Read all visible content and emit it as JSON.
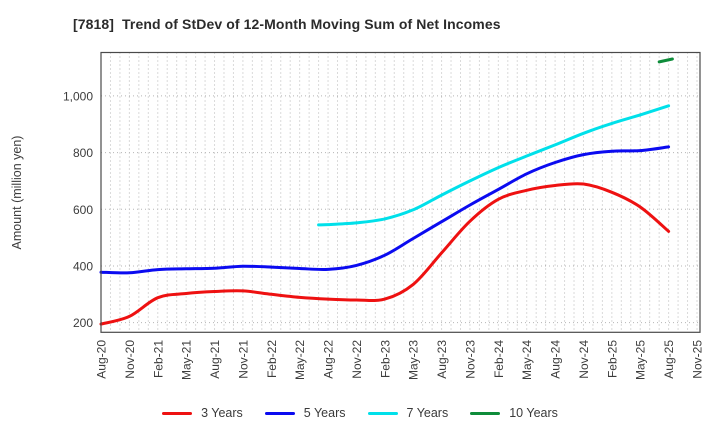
{
  "chart_data": {
    "type": "line",
    "title": "[7818]  Trend of StDev of 12-Month Moving Sum of Net Incomes",
    "ylabel": "Amount (million yen)",
    "xlabel": "",
    "x_tick_labels": [
      "Aug-20",
      "Nov-20",
      "Feb-21",
      "May-21",
      "Aug-21",
      "Nov-21",
      "Feb-22",
      "May-22",
      "Aug-22",
      "Nov-22",
      "Feb-23",
      "May-23",
      "Aug-23",
      "Nov-23",
      "Feb-24",
      "May-24",
      "Aug-24",
      "Nov-24",
      "Feb-25",
      "May-25",
      "Aug-25",
      "Nov-25"
    ],
    "x_months_per_tick": 3,
    "x_total_months": 63,
    "y_ticks": [
      200,
      400,
      600,
      800,
      1000
    ],
    "y_tick_labels": [
      "200",
      "400",
      "600",
      "800",
      "1,000"
    ],
    "ylim": [
      166,
      1153
    ],
    "grid": {
      "horizontal": "dotted at each y tick",
      "vertical": "dotted monthly"
    },
    "legend_position": "bottom-center",
    "axis_color": "#4a4a4a",
    "gridline_color": "#b5b5b5",
    "series": [
      {
        "name": "3 Years",
        "color": "#ee1111",
        "points": [
          [
            0,
            195
          ],
          [
            3,
            222
          ],
          [
            6,
            288
          ],
          [
            9,
            303
          ],
          [
            12,
            310
          ],
          [
            15,
            312
          ],
          [
            18,
            300
          ],
          [
            21,
            289
          ],
          [
            24,
            283
          ],
          [
            27,
            280
          ],
          [
            30,
            283
          ],
          [
            33,
            335
          ],
          [
            36,
            446
          ],
          [
            39,
            558
          ],
          [
            42,
            635
          ],
          [
            45,
            667
          ],
          [
            48,
            684
          ],
          [
            51,
            689
          ],
          [
            54,
            660
          ],
          [
            57,
            608
          ],
          [
            60,
            522
          ]
        ]
      },
      {
        "name": "5 Years",
        "color": "#0b0bf0",
        "points": [
          [
            0,
            378
          ],
          [
            3,
            376
          ],
          [
            6,
            387
          ],
          [
            9,
            390
          ],
          [
            12,
            392
          ],
          [
            15,
            399
          ],
          [
            18,
            396
          ],
          [
            21,
            391
          ],
          [
            24,
            388
          ],
          [
            27,
            402
          ],
          [
            30,
            438
          ],
          [
            33,
            497
          ],
          [
            36,
            556
          ],
          [
            39,
            615
          ],
          [
            42,
            670
          ],
          [
            45,
            725
          ],
          [
            48,
            765
          ],
          [
            51,
            793
          ],
          [
            54,
            805
          ],
          [
            57,
            807
          ],
          [
            60,
            820
          ]
        ]
      },
      {
        "name": "7 Years",
        "color": "#00e0ea",
        "points": [
          [
            23,
            545
          ],
          [
            24,
            546
          ],
          [
            27,
            552
          ],
          [
            30,
            566
          ],
          [
            33,
            598
          ],
          [
            36,
            650
          ],
          [
            39,
            700
          ],
          [
            42,
            747
          ],
          [
            45,
            788
          ],
          [
            48,
            827
          ],
          [
            51,
            868
          ],
          [
            54,
            903
          ],
          [
            57,
            933
          ],
          [
            60,
            965
          ]
        ]
      },
      {
        "name": "10 Years",
        "color": "#0e8c3a",
        "points": [
          [
            59,
            1120
          ],
          [
            60.4,
            1130
          ]
        ]
      }
    ]
  }
}
